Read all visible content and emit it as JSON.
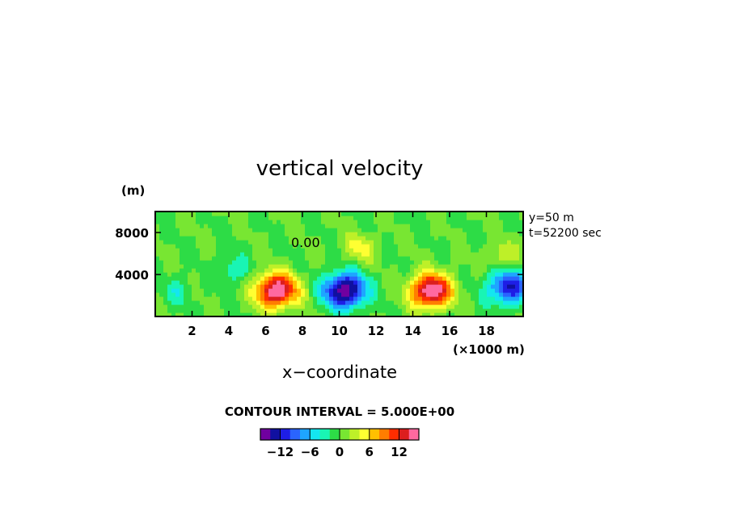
{
  "chart_data": {
    "type": "heatmap",
    "title": "vertical velocity",
    "xlabel": "x−coordinate",
    "x_unit": "(×1000 m)",
    "y_unit": "(m)",
    "xlim": [
      0,
      20
    ],
    "ylim": [
      0,
      10000
    ],
    "x_ticks": [
      2,
      4,
      6,
      8,
      10,
      12,
      14,
      16,
      18
    ],
    "y_ticks": [
      4000,
      8000
    ],
    "info_lines": [
      "y=50 m",
      "t=52200 sec"
    ],
    "contour_label": "0.00",
    "contour_interval_text": "CONTOUR INTERVAL = 5.000E+00",
    "colorbar": {
      "levels": [
        -15,
        -12,
        -10,
        -8,
        -6,
        -4,
        -2,
        0,
        2,
        4,
        6,
        8,
        10,
        12,
        14
      ],
      "tick_values": [
        -12,
        -6,
        0,
        6,
        12
      ],
      "tick_labels": [
        "−12",
        "−6",
        "0",
        "6",
        "12"
      ],
      "colors": [
        "#7000a0",
        "#1010a0",
        "#1e1ee6",
        "#2a64ff",
        "#1ea5ff",
        "#14e6f0",
        "#19f5b4",
        "#2ddc46",
        "#78e632",
        "#bef028",
        "#ffff32",
        "#ffc000",
        "#ff7d00",
        "#ff2d00",
        "#dc1e1e",
        "#ff69a0"
      ]
    },
    "field_features": [
      {
        "kind": "updraft",
        "x_center": 6.6,
        "z_center": 2500,
        "peak": 17
      },
      {
        "kind": "downdraft",
        "x_center": 10.3,
        "z_center": 2500,
        "peak": -17
      },
      {
        "kind": "updraft",
        "x_center": 15.0,
        "z_center": 2500,
        "peak": 17
      },
      {
        "kind": "downdraft",
        "x_center": 19.2,
        "z_center": 2800,
        "peak": -12
      },
      {
        "kind": "weak_updraft",
        "x_center": 11.1,
        "z_center": 6600,
        "peak": 5
      },
      {
        "kind": "weak_updraft",
        "x_center": 18.9,
        "z_center": 5800,
        "peak": 4
      },
      {
        "kind": "weak_downdraft",
        "x_center": 4.3,
        "z_center": 4500,
        "peak": -4
      },
      {
        "kind": "weak_downdraft",
        "x_center": 1.2,
        "z_center": 2500,
        "peak": -3
      }
    ]
  }
}
